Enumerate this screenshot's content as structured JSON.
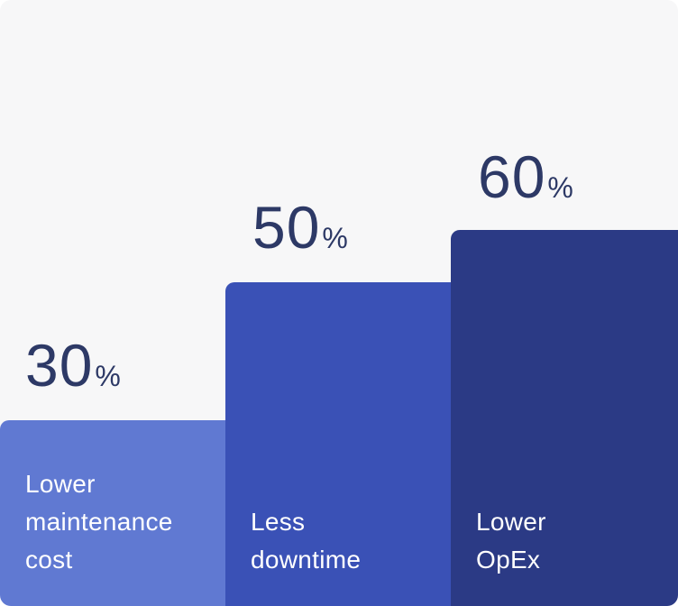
{
  "chart_data": {
    "type": "bar",
    "categories": [
      "Lower maintenance cost",
      "Less downtime",
      "Lower OpEx"
    ],
    "values": [
      30,
      50,
      60
    ],
    "unit": "%",
    "title": "",
    "xlabel": "",
    "ylabel": "",
    "legend": false,
    "grid": false,
    "orientation": "vertical",
    "value_label_position": "above-bar",
    "category_label_position": "inside-bar-bottom"
  },
  "bars": [
    {
      "value": "30",
      "percent_sign": "%",
      "label_lines": [
        "Lower",
        "maintenance",
        "cost"
      ],
      "color": "#6079D2"
    },
    {
      "value": "50",
      "percent_sign": "%",
      "label_lines": [
        "Less",
        "downtime"
      ],
      "color": "#3A51B6"
    },
    {
      "value": "60",
      "percent_sign": "%",
      "label_lines": [
        "Lower",
        "OpEx"
      ],
      "color": "#2B3A85"
    }
  ],
  "colors": {
    "background": "#F7F7F8",
    "value_text": "#2D3966",
    "label_text": "#FFFFFF"
  }
}
